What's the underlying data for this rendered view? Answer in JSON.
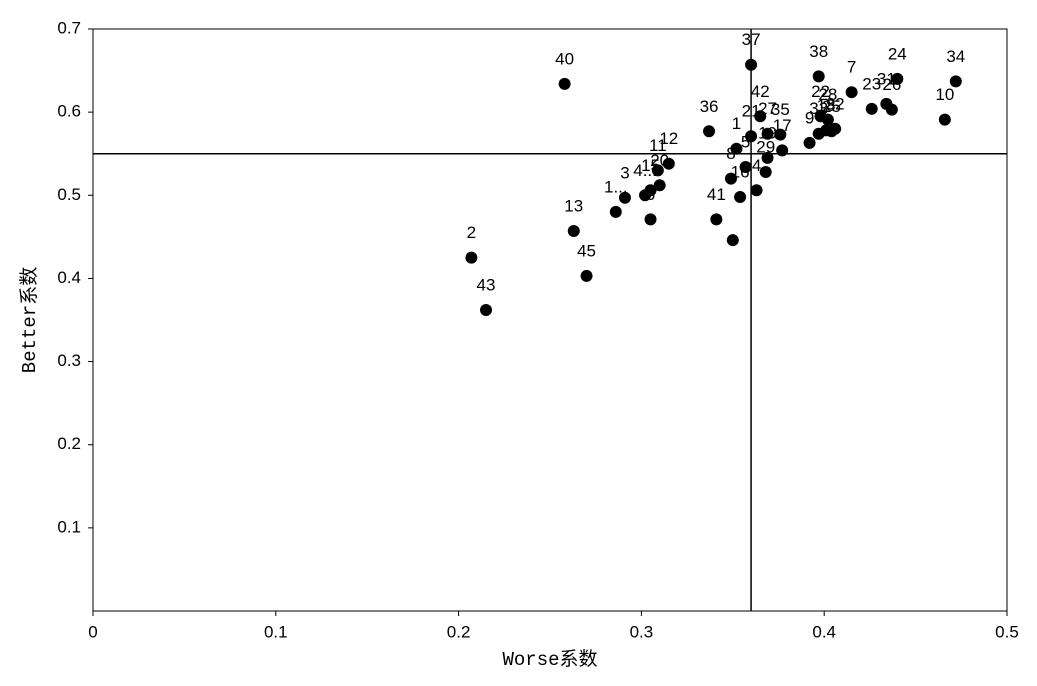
{
  "chart_data": {
    "type": "scatter",
    "x_label": "Worse系数",
    "y_label": "Better系数",
    "xlim": [
      0,
      0.5
    ],
    "ylim": [
      0,
      0.7
    ],
    "xticks": [
      0,
      0.1,
      0.2,
      0.3,
      0.4,
      0.5
    ],
    "yticks": [
      0.1,
      0.2,
      0.3,
      0.4,
      0.5,
      0.6,
      0.7
    ],
    "ref_x": 0.36,
    "ref_y": 0.55,
    "color": "#000000",
    "labels": [
      "40",
      "2",
      "43",
      "45",
      "13",
      "1...",
      "3",
      "6",
      "15",
      "20",
      "11",
      "12",
      "41",
      null,
      "8",
      "16",
      "4",
      "29",
      "5",
      "19",
      "1",
      "17",
      "9",
      "33",
      "21",
      "36",
      "42",
      "37",
      "38",
      "7",
      "24",
      "34",
      "10",
      "26",
      "31",
      "23",
      "22",
      "28",
      "35",
      "25",
      "18",
      "27",
      "4...",
      "32"
    ],
    "x": [
      0.258,
      0.207,
      0.215,
      0.27,
      0.263,
      0.286,
      0.291,
      0.305,
      0.305,
      0.31,
      0.309,
      0.315,
      0.341,
      0.35,
      0.349,
      0.354,
      0.363,
      0.368,
      0.357,
      0.369,
      0.352,
      0.377,
      0.392,
      0.397,
      0.36,
      0.337,
      0.365,
      0.36,
      0.397,
      0.415,
      0.44,
      0.472,
      0.466,
      0.437,
      0.434,
      0.426,
      0.398,
      0.402,
      0.376,
      0.404,
      0.401,
      0.369,
      0.302,
      0.406
    ],
    "values": [
      0.634,
      0.425,
      0.362,
      0.403,
      0.457,
      0.48,
      0.497,
      0.471,
      0.506,
      0.512,
      0.53,
      0.538,
      0.471,
      0.446,
      0.52,
      0.498,
      0.506,
      0.528,
      0.534,
      0.545,
      0.556,
      0.554,
      0.563,
      0.574,
      0.571,
      0.577,
      0.595,
      0.657,
      0.643,
      0.624,
      0.64,
      0.637,
      0.591,
      0.603,
      0.61,
      0.604,
      0.595,
      0.591,
      0.573,
      0.577,
      0.578,
      0.574,
      0.5,
      0.58
    ]
  }
}
